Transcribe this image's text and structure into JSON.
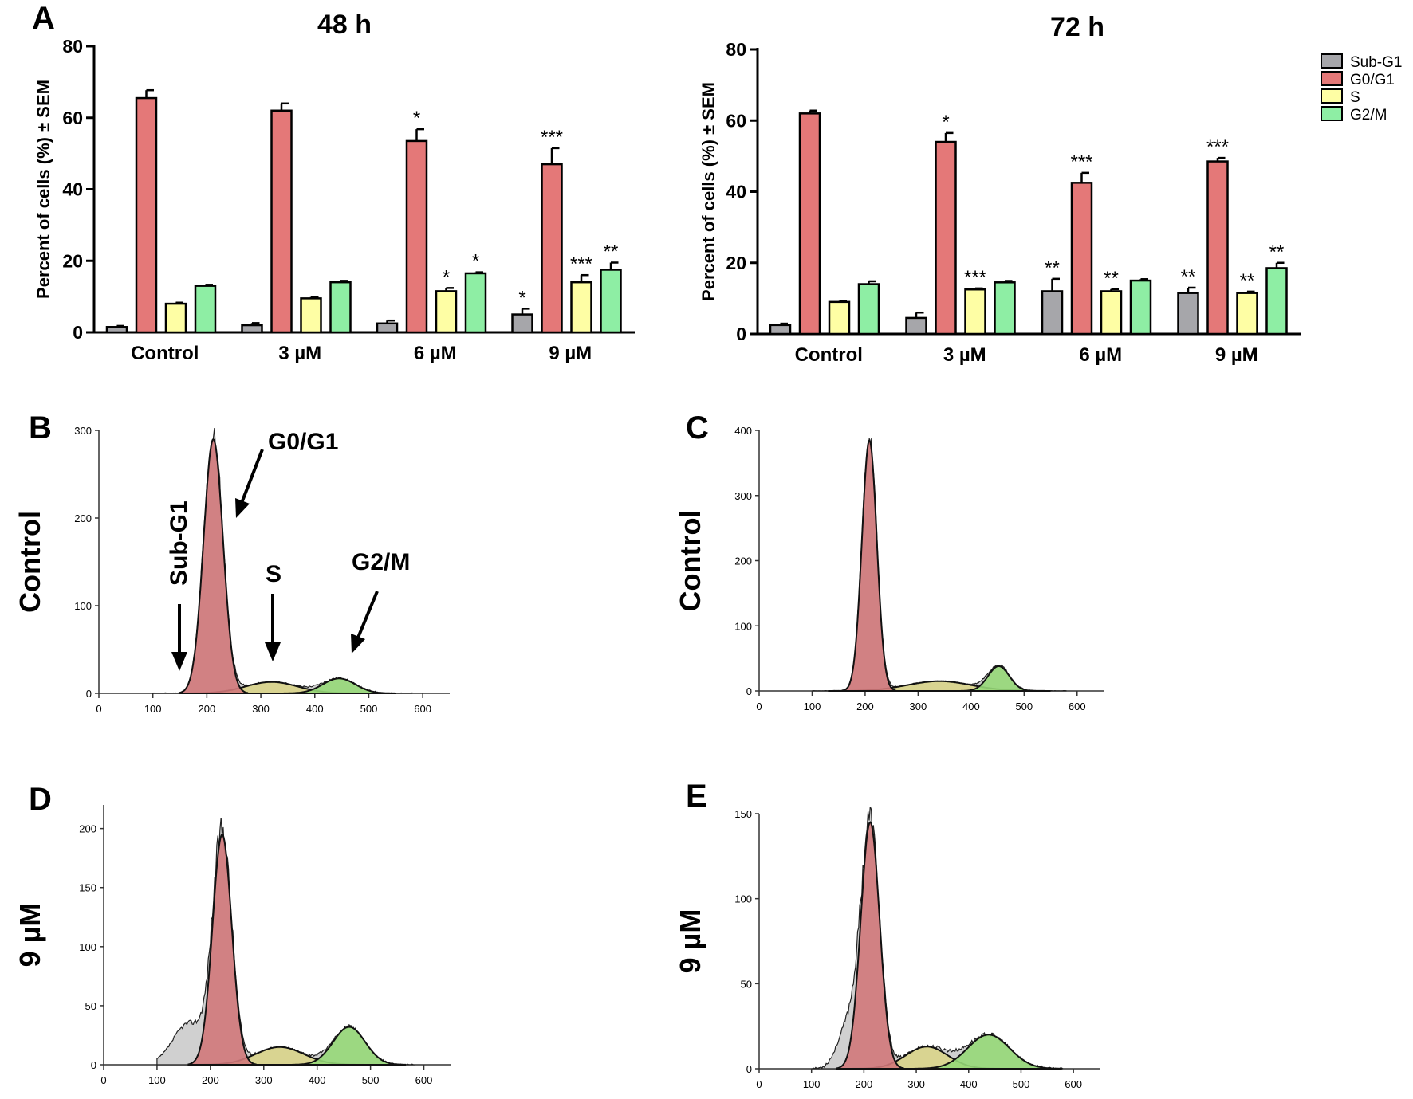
{
  "panel_letters": [
    "A",
    "B",
    "C",
    "D",
    "E"
  ],
  "colors": {
    "Sub-G1": "#a6a6aa",
    "G0/G1": "#e47878",
    "S": "#fefea4",
    "G2/M": "#8eeea4",
    "hist_subg1": "#c8c8c8",
    "hist_g0g1": "#d0787a",
    "hist_s": "#d9d48a",
    "hist_g2m": "#96d878"
  },
  "legend": {
    "placement": "top-right",
    "entries": [
      "Sub-G1",
      "G0/G1",
      "S",
      "G2/M"
    ]
  },
  "chart_data": [
    {
      "type": "bar",
      "panel": "A",
      "title": "48 h",
      "ylabel": "Percent of cells (%) ± SEM",
      "xlabel": "",
      "ylim": [
        0,
        80
      ],
      "yticks": [
        "0",
        "20",
        "40",
        "60",
        "80"
      ],
      "categories": [
        "Control",
        "3 µM",
        "6 µM",
        "9 µM"
      ],
      "series": [
        {
          "name": "Sub-G1",
          "values": [
            1.5,
            2.0,
            2.5,
            5.0
          ],
          "errors": [
            0.3,
            0.6,
            0.8,
            1.6
          ],
          "significance": [
            "",
            "",
            "",
            "*"
          ]
        },
        {
          "name": "G0/G1",
          "values": [
            65.5,
            62.0,
            53.5,
            47.0
          ],
          "errors": [
            2.2,
            2.0,
            3.3,
            4.5
          ],
          "significance": [
            "",
            "",
            "*",
            "***"
          ]
        },
        {
          "name": "S",
          "values": [
            8.0,
            9.5,
            11.5,
            14.0
          ],
          "errors": [
            0.3,
            0.4,
            0.9,
            2.0
          ],
          "significance": [
            "",
            "",
            "*",
            "***"
          ]
        },
        {
          "name": "G2/M",
          "values": [
            13.0,
            14.0,
            16.5,
            17.5
          ],
          "errors": [
            0.3,
            0.4,
            0.3,
            2.0
          ],
          "significance": [
            "",
            "",
            "*",
            "**"
          ]
        }
      ]
    },
    {
      "type": "bar",
      "panel": "A",
      "title": "72 h",
      "ylabel": "Percent of cells (%) ± SEM",
      "xlabel": "",
      "ylim": [
        0,
        80
      ],
      "yticks": [
        "0",
        "20",
        "40",
        "60",
        "80"
      ],
      "categories": [
        "Control",
        "3 µM",
        "6 µM",
        "9 µM"
      ],
      "series": [
        {
          "name": "Sub-G1",
          "values": [
            2.5,
            4.5,
            12.0,
            11.5
          ],
          "errors": [
            0.4,
            1.5,
            3.5,
            1.5
          ],
          "significance": [
            "",
            "",
            "**",
            "**"
          ]
        },
        {
          "name": "G0/G1",
          "values": [
            62.0,
            54.0,
            42.5,
            48.5
          ],
          "errors": [
            0.8,
            2.5,
            2.8,
            1.0
          ],
          "significance": [
            "",
            "*",
            "***",
            "***"
          ]
        },
        {
          "name": "S",
          "values": [
            9.0,
            12.5,
            12.0,
            11.5
          ],
          "errors": [
            0.3,
            0.3,
            0.6,
            0.4
          ],
          "significance": [
            "",
            "***",
            "**",
            "**"
          ]
        },
        {
          "name": "G2/M",
          "values": [
            14.0,
            14.5,
            15.0,
            18.5
          ],
          "errors": [
            0.8,
            0.4,
            0.4,
            1.5
          ],
          "significance": [
            "",
            "",
            "",
            "**"
          ]
        }
      ]
    },
    {
      "type": "area",
      "panel": "B",
      "ylabel": "Control",
      "xlim": [
        0,
        650
      ],
      "ylim": [
        0,
        300
      ],
      "xticks": [
        "0",
        "100",
        "200",
        "300",
        "400",
        "500",
        "600"
      ],
      "yticks": [
        "0",
        "100",
        "200",
        "300"
      ],
      "annotations": [
        "G0/G1",
        "Sub-G1",
        "S",
        "G2/M"
      ],
      "components": [
        {
          "name": "Sub-G1",
          "center": 0,
          "width": 1,
          "height": 0
        },
        {
          "name": "G0/G1",
          "center": 212,
          "width": 18,
          "height": 290
        },
        {
          "name": "S",
          "center": 320,
          "width": 48,
          "height": 13
        },
        {
          "name": "G2/M",
          "center": 445,
          "width": 30,
          "height": 17
        }
      ]
    },
    {
      "type": "area",
      "panel": "C",
      "ylabel": "Control",
      "xlim": [
        0,
        650
      ],
      "ylim": [
        0,
        400
      ],
      "xticks": [
        "0",
        "100",
        "200",
        "300",
        "400",
        "500",
        "600"
      ],
      "yticks": [
        "0",
        "100",
        "200",
        "300",
        "400"
      ],
      "components": [
        {
          "name": "Sub-G1",
          "center": 0,
          "width": 1,
          "height": 0
        },
        {
          "name": "G0/G1",
          "center": 208,
          "width": 14,
          "height": 385
        },
        {
          "name": "S",
          "center": 340,
          "width": 60,
          "height": 15
        },
        {
          "name": "G2/M",
          "center": 452,
          "width": 20,
          "height": 38
        }
      ]
    },
    {
      "type": "area",
      "panel": "D",
      "ylabel": "9 µM",
      "xlim": [
        0,
        650
      ],
      "ylim": [
        0,
        220
      ],
      "xticks": [
        "0",
        "100",
        "200",
        "300",
        "400",
        "500",
        "600"
      ],
      "yticks": [
        "0",
        "50",
        "100",
        "150",
        "200"
      ],
      "components": [
        {
          "name": "Sub-G1",
          "center": 160,
          "width": 30,
          "height": 35
        },
        {
          "name": "G0/G1",
          "center": 222,
          "width": 18,
          "height": 195
        },
        {
          "name": "S",
          "center": 330,
          "width": 45,
          "height": 15
        },
        {
          "name": "G2/M",
          "center": 460,
          "width": 30,
          "height": 32
        }
      ]
    },
    {
      "type": "area",
      "panel": "E",
      "ylabel": "9 µM",
      "xlim": [
        0,
        650
      ],
      "ylim": [
        0,
        150
      ],
      "xticks": [
        "0",
        "100",
        "200",
        "300",
        "400",
        "500",
        "600"
      ],
      "yticks": [
        "0",
        "50",
        "100",
        "150"
      ],
      "components": [
        {
          "name": "Sub-G1",
          "center": 170,
          "width": 20,
          "height": 25
        },
        {
          "name": "G0/G1",
          "center": 212,
          "width": 18,
          "height": 145
        },
        {
          "name": "S",
          "center": 320,
          "width": 40,
          "height": 13
        },
        {
          "name": "G2/M",
          "center": 438,
          "width": 40,
          "height": 20
        }
      ]
    }
  ]
}
